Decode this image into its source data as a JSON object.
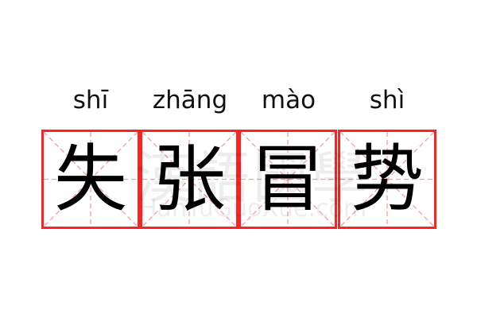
{
  "entry": {
    "syllables": [
      {
        "pinyin": "shī",
        "char": "失"
      },
      {
        "pinyin": "zhāng",
        "char": "张"
      },
      {
        "pinyin": "mào",
        "char": "冒"
      },
      {
        "pinyin": "shì",
        "char": "势"
      }
    ]
  },
  "watermark": {
    "chinese": "漢語國學",
    "latin": "HanYuGuoXue.com"
  },
  "colors": {
    "grid_border": "#ff2222",
    "guide_lines": "#f5a0a0",
    "text": "#000000"
  }
}
